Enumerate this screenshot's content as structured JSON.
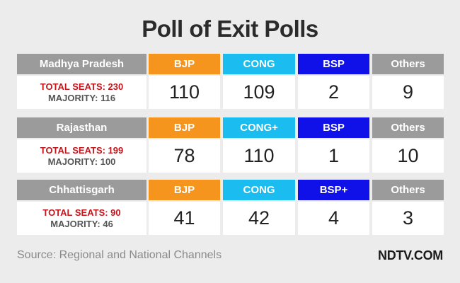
{
  "title": "Poll of Exit Polls",
  "states": [
    {
      "name": "Madhya Pradesh",
      "total_seats": "TOTAL SEATS: 230",
      "majority": "MAJORITY: 116",
      "parties": [
        {
          "label": "BJP",
          "value": "110"
        },
        {
          "label": "CONG",
          "value": "109"
        },
        {
          "label": "BSP",
          "value": "2"
        },
        {
          "label": "Others",
          "value": "9"
        }
      ]
    },
    {
      "name": "Rajasthan",
      "total_seats": "TOTAL SEATS: 199",
      "majority": "MAJORITY: 100",
      "parties": [
        {
          "label": "BJP",
          "value": "78"
        },
        {
          "label": "CONG+",
          "value": "110"
        },
        {
          "label": "BSP",
          "value": "1"
        },
        {
          "label": "Others",
          "value": "10"
        }
      ]
    },
    {
      "name": "Chhattisgarh",
      "total_seats": "TOTAL SEATS: 90",
      "majority": "MAJORITY: 46",
      "parties": [
        {
          "label": "BJP",
          "value": "41"
        },
        {
          "label": "CONG",
          "value": "42"
        },
        {
          "label": "BSP+",
          "value": "4"
        },
        {
          "label": "Others",
          "value": "3"
        }
      ]
    }
  ],
  "colors": {
    "bjp": "#f6951e",
    "cong": "#1bbcf0",
    "bsp": "#1010e8",
    "others": "#9b9b9b",
    "seats_text": "#c4161c"
  },
  "footer": {
    "source": "Source: Regional and National Channels",
    "logo": "NDTV.COM"
  }
}
